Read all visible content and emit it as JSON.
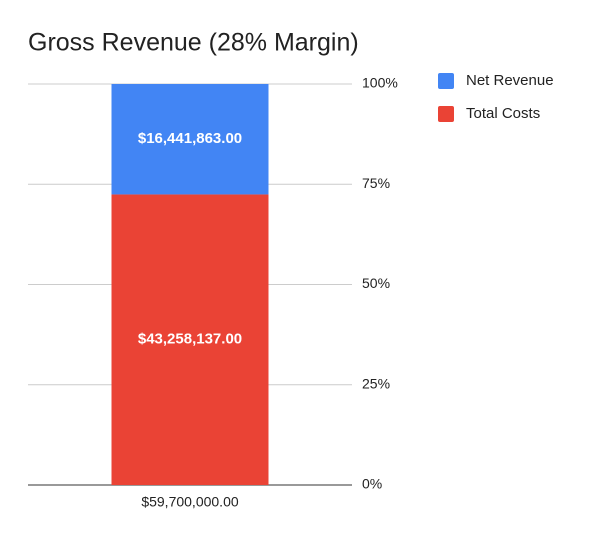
{
  "chart_data": {
    "type": "bar",
    "stacking": "percent",
    "title": "Gross Revenue (28% Margin)",
    "categories": [
      "$59,700,000.00"
    ],
    "series": [
      {
        "name": "Net Revenue",
        "color": "#4285f4",
        "values": [
          16441863
        ],
        "value_labels": [
          "$16,441,863.00"
        ]
      },
      {
        "name": "Total Costs",
        "color": "#ea4335",
        "values": [
          43258137
        ],
        "value_labels": [
          "$43,258,137.00"
        ]
      }
    ],
    "ylim": [
      0,
      100
    ],
    "yticks": [
      {
        "value": 0,
        "label": "0%"
      },
      {
        "value": 25,
        "label": "25%"
      },
      {
        "value": 50,
        "label": "50%"
      },
      {
        "value": 75,
        "label": "75%"
      },
      {
        "value": 100,
        "label": "100%"
      }
    ],
    "grid": true,
    "legend": "right"
  }
}
